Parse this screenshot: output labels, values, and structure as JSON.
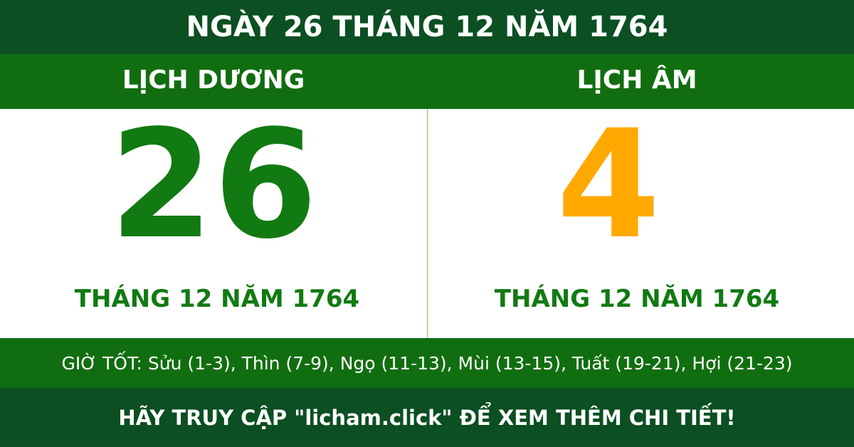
{
  "header": {
    "title": "NGÀY 26 THÁNG 12 NĂM 1764"
  },
  "solar": {
    "label": "LỊCH DƯƠNG",
    "day": "26",
    "month_year": "THÁNG 12 NĂM 1764"
  },
  "lunar": {
    "label": "LỊCH ÂM",
    "day": "4",
    "month_year": "THÁNG 12 NĂM 1764"
  },
  "good_hours": "GIỜ TỐT: Sửu (1-3), Thìn (7-9), Ngọ (11-13), Mùi (13-15), Tuất (19-21), Hợi (21-23)",
  "footer": "HÃY TRUY CẬP \"licham.click\" ĐỂ XEM THÊM CHI TIẾT!"
}
